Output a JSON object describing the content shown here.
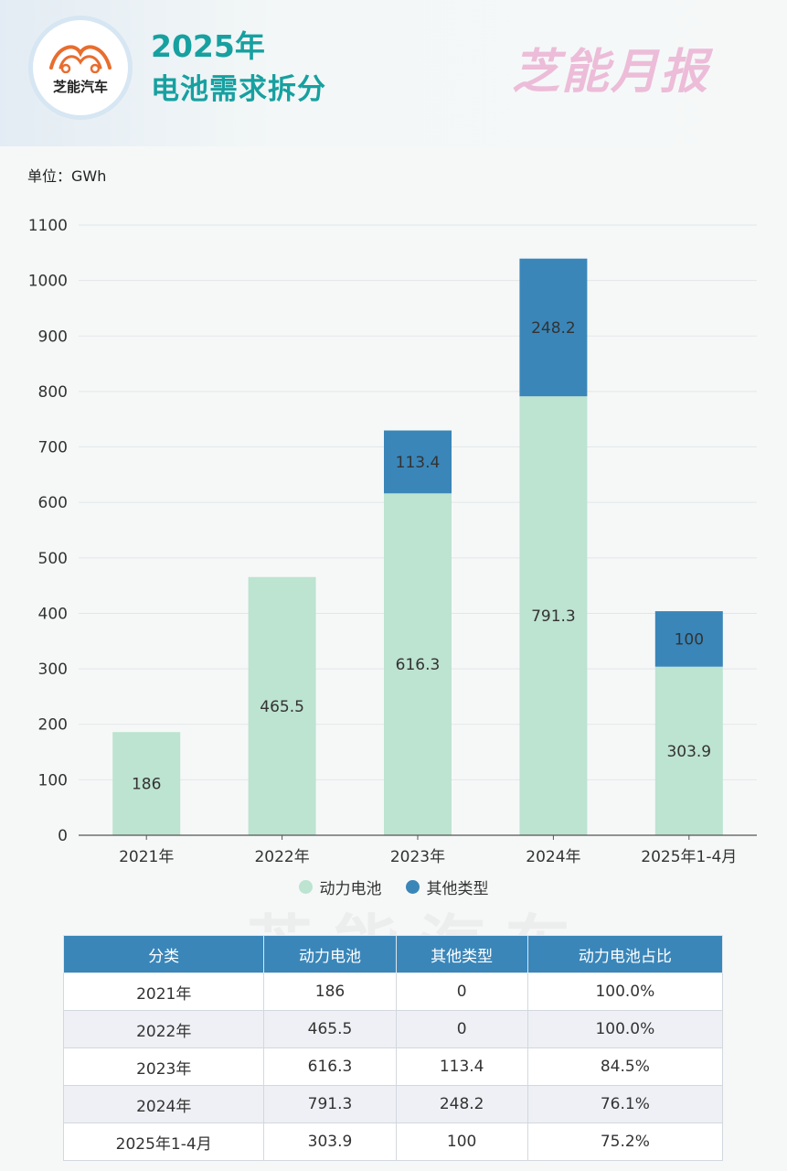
{
  "header": {
    "logo_text": "芝能汽车",
    "title_year": "2025年",
    "title_main": "电池需求拆分",
    "brand": "芝能月报"
  },
  "unit_label": "单位：GWh",
  "colors": {
    "power": "#bde3d1",
    "other": "#3a86b9",
    "title": "#17a0a0"
  },
  "legend": [
    {
      "label": "动力电池",
      "color": "#bde3d1"
    },
    {
      "label": "其他类型",
      "color": "#3a86b9"
    }
  ],
  "chart_data": {
    "type": "bar",
    "stacked": true,
    "categories": [
      "2021年",
      "2022年",
      "2023年",
      "2024年",
      "2025年1-4月"
    ],
    "series": [
      {
        "name": "动力电池",
        "values": [
          186,
          465.5,
          616.3,
          791.3,
          303.9
        ],
        "labels": [
          "186",
          "465.5",
          "616.3",
          "791.3",
          "303.9"
        ]
      },
      {
        "name": "其他类型",
        "values": [
          0,
          0,
          113.4,
          248.2,
          100
        ],
        "labels": [
          "",
          "",
          "113.4",
          "248.2",
          "100"
        ]
      }
    ],
    "yticks": [
      0,
      100,
      200,
      300,
      400,
      500,
      600,
      700,
      800,
      900,
      1000,
      1100
    ],
    "ylim": [
      0,
      1100
    ],
    "grid": true,
    "legend_position": "bottom"
  },
  "table": {
    "headers": [
      "分类",
      "动力电池",
      "其他类型",
      "动力电池占比"
    ],
    "rows": [
      [
        "2021年",
        "186",
        "0",
        "100.0%"
      ],
      [
        "2022年",
        "465.5",
        "0",
        "100.0%"
      ],
      [
        "2023年",
        "616.3",
        "113.4",
        "84.5%"
      ],
      [
        "2024年",
        "791.3",
        "248.2",
        "76.1%"
      ],
      [
        "2025年1-4月",
        "303.9",
        "100",
        "75.2%"
      ]
    ]
  }
}
